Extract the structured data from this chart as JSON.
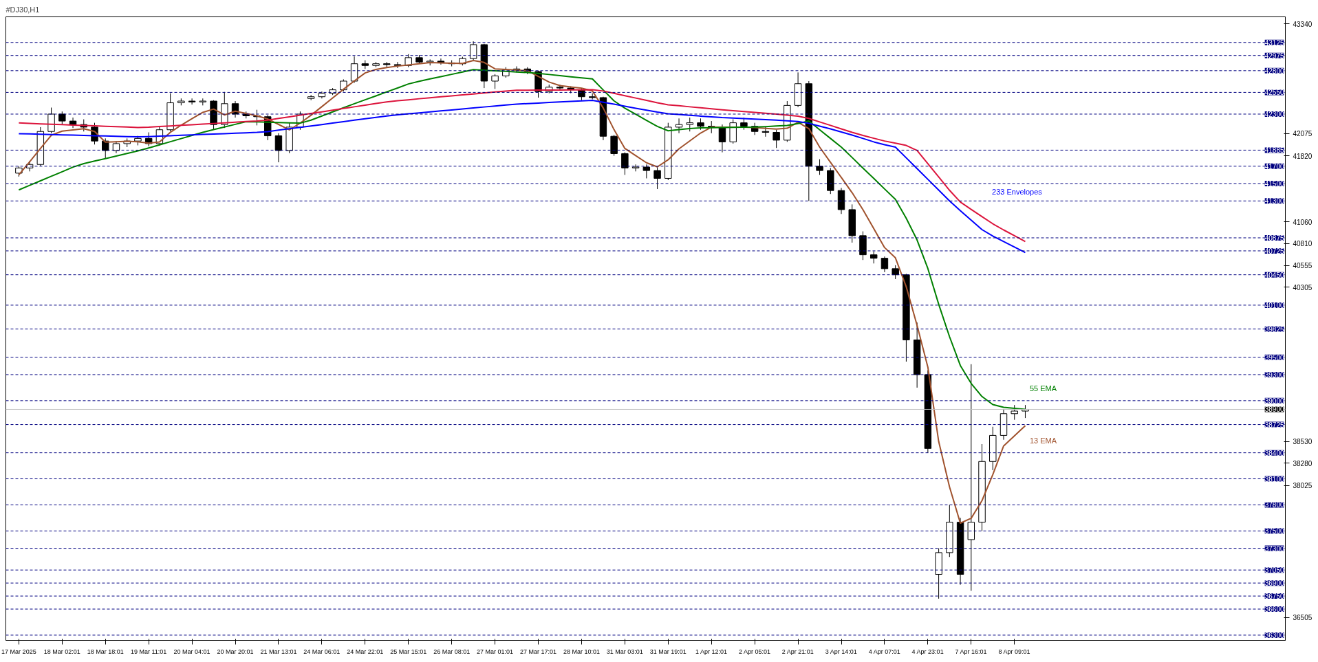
{
  "chart_data": {
    "type": "candlestick",
    "title": "#DJ30,H1",
    "ylim": [
      36240,
      43420
    ],
    "yticks": [
      43340,
      42075,
      41820,
      41060,
      40810,
      40555,
      40305,
      38530,
      38280,
      38025,
      36505
    ],
    "categories": [
      "17 Mar 2025",
      null,
      null,
      null,
      "18 Mar 02:01",
      null,
      null,
      null,
      "18 Mar 18:01",
      null,
      null,
      null,
      "19 Mar 11:01",
      null,
      null,
      null,
      "20 Mar 04:01",
      null,
      null,
      null,
      "20 Mar 20:01",
      null,
      null,
      null,
      "21 Mar 13:01",
      null,
      null,
      null,
      "24 Mar 06:01",
      null,
      null,
      null,
      "24 Mar 22:01",
      null,
      null,
      null,
      "25 Mar 15:01",
      null,
      null,
      null,
      "26 Mar 08:01",
      null,
      null,
      null,
      "27 Mar 01:01",
      null,
      null,
      null,
      "27 Mar 17:01",
      null,
      null,
      null,
      "28 Mar 10:01",
      null,
      null,
      null,
      "31 Mar 03:01",
      null,
      null,
      null,
      "31 Mar 19:01",
      null,
      null,
      null,
      "1 Apr 12:01",
      null,
      null,
      null,
      "2 Apr 05:01",
      null,
      null,
      null,
      "2 Apr 21:01",
      null,
      null,
      null,
      "3 Apr 14:01",
      null,
      null,
      null,
      "4 Apr 07:01",
      null,
      null,
      null,
      "4 Apr 23:01",
      null,
      null,
      null,
      "7 Apr 16:01",
      null,
      null,
      null,
      "8 Apr 09:01",
      null
    ],
    "ohlc": [
      [
        41620,
        41700,
        41580,
        41680
      ],
      [
        41680,
        41760,
        41640,
        41720
      ],
      [
        41720,
        42150,
        41700,
        42100
      ],
      [
        42100,
        42375,
        42080,
        42300
      ],
      [
        42300,
        42330,
        42180,
        42220
      ],
      [
        42220,
        42260,
        42140,
        42180
      ],
      [
        42180,
        42240,
        42100,
        42150
      ],
      [
        42150,
        42200,
        41950,
        41990
      ],
      [
        41990,
        42020,
        41790,
        41880
      ],
      [
        41880,
        41990,
        41850,
        41960
      ],
      [
        41960,
        42020,
        41920,
        41990
      ],
      [
        41990,
        42050,
        41940,
        42020
      ],
      [
        42020,
        42090,
        41930,
        41960
      ],
      [
        41960,
        42150,
        41940,
        42120
      ],
      [
        42120,
        42540,
        42100,
        42430
      ],
      [
        42430,
        42480,
        42400,
        42450
      ],
      [
        42450,
        42480,
        42410,
        42440
      ],
      [
        42440,
        42480,
        42400,
        42450
      ],
      [
        42450,
        42460,
        42120,
        42180
      ],
      [
        42180,
        42555,
        42140,
        42420
      ],
      [
        42420,
        42450,
        42260,
        42300
      ],
      [
        42300,
        42330,
        42250,
        42280
      ],
      [
        42280,
        42350,
        42170,
        42270
      ],
      [
        42270,
        42290,
        42000,
        42050
      ],
      [
        42050,
        42080,
        41745,
        41880
      ],
      [
        41880,
        42200,
        41850,
        42150
      ],
      [
        42150,
        42330,
        42120,
        42300
      ],
      [
        42480,
        42520,
        42460,
        42500
      ],
      [
        42500,
        42560,
        42480,
        42540
      ],
      [
        42540,
        42600,
        42520,
        42580
      ],
      [
        42580,
        42700,
        42560,
        42680
      ],
      [
        42680,
        42965,
        42660,
        42880
      ],
      [
        42880,
        42920,
        42820,
        42860
      ],
      [
        42860,
        42900,
        42840,
        42880
      ],
      [
        42880,
        42900,
        42840,
        42870
      ],
      [
        42870,
        42900,
        42830,
        42860
      ],
      [
        42860,
        42990,
        42840,
        42950
      ],
      [
        42950,
        42980,
        42880,
        42900
      ],
      [
        42900,
        42930,
        42860,
        42910
      ],
      [
        42910,
        42940,
        42870,
        42890
      ],
      [
        42890,
        42920,
        42850,
        42880
      ],
      [
        42880,
        42960,
        42860,
        42940
      ],
      [
        42940,
        43138,
        42920,
        43100
      ],
      [
        43100,
        43110,
        42600,
        42680
      ],
      [
        42680,
        42760,
        42590,
        42740
      ],
      [
        42740,
        42840,
        42720,
        42810
      ],
      [
        42810,
        42850,
        42780,
        42820
      ],
      [
        42820,
        42840,
        42760,
        42790
      ],
      [
        42790,
        42800,
        42490,
        42560
      ],
      [
        42560,
        42640,
        42540,
        42610
      ],
      [
        42610,
        42640,
        42570,
        42600
      ],
      [
        42600,
        42620,
        42540,
        42580
      ],
      [
        42580,
        42600,
        42460,
        42500
      ],
      [
        42500,
        42540,
        42470,
        42490
      ],
      [
        42490,
        42500,
        42000,
        42045
      ],
      [
        42045,
        42060,
        41820,
        41845
      ],
      [
        41845,
        41860,
        41600,
        41680
      ],
      [
        41680,
        41720,
        41640,
        41690
      ],
      [
        41690,
        41720,
        41560,
        41650
      ],
      [
        41650,
        41700,
        41437,
        41560
      ],
      [
        41560,
        42200,
        41540,
        42150
      ],
      [
        42150,
        42250,
        42080,
        42180
      ],
      [
        42180,
        42260,
        42100,
        42200
      ],
      [
        42200,
        42250,
        42120,
        42160
      ],
      [
        42160,
        42220,
        42080,
        42150
      ],
      [
        42150,
        42180,
        41860,
        41980
      ],
      [
        41980,
        42240,
        41960,
        42200
      ],
      [
        42200,
        42260,
        42120,
        42160
      ],
      [
        42160,
        42200,
        42060,
        42100
      ],
      [
        42100,
        42150,
        42040,
        42090
      ],
      [
        42090,
        42120,
        41910,
        42000
      ],
      [
        42000,
        42450,
        41980,
        42400
      ],
      [
        42400,
        42780,
        42380,
        42650
      ],
      [
        42650,
        42680,
        41300,
        41700
      ],
      [
        41700,
        41780,
        41600,
        41650
      ],
      [
        41650,
        41680,
        41380,
        41420
      ],
      [
        41420,
        41450,
        41150,
        41200
      ],
      [
        41200,
        41260,
        40820,
        40900
      ],
      [
        40900,
        40950,
        40620,
        40680
      ],
      [
        40680,
        40720,
        40580,
        40640
      ],
      [
        40640,
        40660,
        40480,
        40520
      ],
      [
        40520,
        40560,
        40400,
        40450
      ],
      [
        40450,
        40460,
        39450,
        39700
      ],
      [
        39700,
        39900,
        39150,
        39300
      ],
      [
        39300,
        39350,
        38400,
        38450
      ],
      [
        37000,
        37300,
        36720,
        37250
      ],
      [
        37250,
        37800,
        37200,
        37600
      ],
      [
        37600,
        37650,
        36880,
        37000
      ],
      [
        37400,
        39420,
        36810,
        37600
      ],
      [
        37600,
        38500,
        37500,
        38300
      ],
      [
        38300,
        38700,
        38200,
        38600
      ],
      [
        38600,
        38900,
        38550,
        38850
      ],
      [
        38850,
        38950,
        38780,
        38880
      ],
      [
        38880,
        38950,
        38800,
        38900
      ]
    ],
    "series": [
      {
        "type": "line",
        "color": "#a0522d",
        "values": [
          41600,
          41750,
          41905,
          42056,
          42104,
          42118,
          42131,
          42100,
          41977,
          41982,
          41987,
          41982,
          41965,
          41980,
          42090,
          42173,
          42247,
          42320,
          42358,
          42290,
          42333,
          42307,
          42280,
          42244,
          42181,
          42118,
          42197,
          42287,
          42386,
          42486,
          42586,
          42682,
          42774,
          42814,
          42837,
          42853,
          42866,
          42880,
          42893,
          42889,
          42885,
          42883,
          42918,
          42895,
          42821,
          42814,
          42807,
          42800,
          42734,
          42669,
          42628,
          42613,
          42598,
          42567,
          42370,
          42121,
          41905,
          41822,
          41740,
          41692,
          41774,
          41900,
          41991,
          42082,
          42150,
          42150,
          42150,
          42150,
          42145,
          42136,
          42127,
          42137,
          42206,
          42133,
          41920,
          41745,
          41570,
          41395,
          41199,
          40981,
          40763,
          40645,
          40312,
          39868,
          39385,
          38529,
          38007,
          37590,
          37646,
          37849,
          38148,
          38479,
          38595,
          38711
        ]
      },
      {
        "type": "line",
        "color": "#008000",
        "values": [
          41427,
          41479,
          41532,
          41584,
          41636,
          41689,
          41730,
          41759,
          41788,
          41817,
          41846,
          41876,
          41910,
          41946,
          41982,
          42018,
          42054,
          42090,
          42121,
          42152,
          42182,
          42213,
          42210,
          42206,
          42203,
          42199,
          42196,
          42231,
          42278,
          42326,
          42373,
          42420,
          42465,
          42510,
          42556,
          42601,
          42647,
          42678,
          42705,
          42731,
          42758,
          42785,
          42812,
          42805,
          42799,
          42792,
          42785,
          42778,
          42769,
          42756,
          42743,
          42730,
          42718,
          42705,
          42578,
          42452,
          42368,
          42298,
          42228,
          42158,
          42108,
          42121,
          42134,
          42141,
          42143,
          42145,
          42147,
          42149,
          42151,
          42156,
          42163,
          42169,
          42191,
          42220,
          42120,
          42020,
          41920,
          41800,
          41679,
          41559,
          41438,
          41318,
          41101,
          40851,
          40521,
          40110,
          39737,
          39405,
          39198,
          39048,
          38955,
          38923,
          38911,
          38900
        ]
      },
      {
        "type": "line",
        "color": "#dc143c",
        "values": [
          42198,
          42193,
          42188,
          42184,
          42179,
          42174,
          42170,
          42165,
          42160,
          42156,
          42151,
          42146,
          42150,
          42157,
          42164,
          42171,
          42178,
          42185,
          42192,
          42199,
          42207,
          42214,
          42221,
          42231,
          42250,
          42269,
          42288,
          42307,
          42326,
          42346,
          42365,
          42384,
          42403,
          42422,
          42441,
          42454,
          42465,
          42477,
          42488,
          42499,
          42510,
          42521,
          42532,
          42543,
          42555,
          42566,
          42574,
          42575,
          42576,
          42577,
          42577,
          42578,
          42579,
          42580,
          42566,
          42539,
          42512,
          42485,
          42458,
          42430,
          42407,
          42396,
          42384,
          42373,
          42361,
          42350,
          42340,
          42330,
          42320,
          42310,
          42300,
          42288,
          42276,
          42250,
          42210,
          42170,
          42130,
          42090,
          42054,
          42022,
          41990,
          41965,
          41939,
          41882,
          41729,
          41576,
          41423,
          41287,
          41203,
          41120,
          41037,
          40966,
          40899,
          40833
        ]
      },
      {
        "type": "line",
        "color": "#0000ff",
        "values": [
          42075,
          42072,
          42068,
          42065,
          42061,
          42058,
          42055,
          42051,
          42048,
          42044,
          42041,
          42038,
          42041,
          42046,
          42051,
          42056,
          42061,
          42066,
          42071,
          42075,
          42080,
          42085,
          42090,
          42098,
          42115,
          42131,
          42148,
          42164,
          42180,
          42197,
          42213,
          42230,
          42246,
          42262,
          42279,
          42291,
          42303,
          42314,
          42325,
          42337,
          42348,
          42359,
          42371,
          42382,
          42393,
          42405,
          42415,
          42421,
          42427,
          42434,
          42440,
          42446,
          42453,
          42459,
          42436,
          42414,
          42391,
          42368,
          42346,
          42323,
          42304,
          42295,
          42286,
          42277,
          42269,
          42260,
          42254,
          42248,
          42242,
          42236,
          42230,
          42222,
          42214,
          42194,
          42162,
          42130,
          42094,
          42058,
          42020,
          41980,
          41947,
          41920,
          41796,
          41672,
          41549,
          41425,
          41301,
          41188,
          41079,
          40970,
          40896,
          40833,
          40769,
          40706
        ]
      }
    ],
    "ref_lines": [
      {
        "axis": "y",
        "value": 43125,
        "label": "43125",
        "color": "#000080",
        "line_style": "dashed"
      },
      {
        "axis": "y",
        "value": 42975,
        "label": "42975",
        "color": "#000080",
        "line_style": "dashed"
      },
      {
        "axis": "y",
        "value": 42800,
        "label": "42800",
        "color": "#000080",
        "line_style": "dashed"
      },
      {
        "axis": "y",
        "value": 42550,
        "label": "42550",
        "color": "#000080",
        "line_style": "dashed"
      },
      {
        "axis": "y",
        "value": 42300,
        "label": "42300",
        "color": "#000080",
        "line_style": "dashed"
      },
      {
        "axis": "y",
        "value": 41885,
        "label": "41885",
        "color": "#000080",
        "line_style": "dashed"
      },
      {
        "axis": "y",
        "value": 41700,
        "label": "41700",
        "color": "#000080",
        "line_style": "dashed"
      },
      {
        "axis": "y",
        "value": 41500,
        "label": "41500",
        "color": "#000080",
        "line_style": "dashed"
      },
      {
        "axis": "y",
        "value": 41300,
        "label": "41300",
        "color": "#000080",
        "line_style": "dashed"
      },
      {
        "axis": "y",
        "value": 40875,
        "label": "40875",
        "color": "#000080",
        "line_style": "dashed"
      },
      {
        "axis": "y",
        "value": 40725,
        "label": "40725",
        "color": "#000080",
        "line_style": "dashed"
      },
      {
        "axis": "y",
        "value": 40450,
        "label": "40450",
        "color": "#000080",
        "line_style": "dashed"
      },
      {
        "axis": "y",
        "value": 40100,
        "label": "40100",
        "color": "#000080",
        "line_style": "dashed"
      },
      {
        "axis": "y",
        "value": 39825,
        "label": "39825",
        "color": "#000080",
        "line_style": "dashed"
      },
      {
        "axis": "y",
        "value": 39500,
        "label": "39500",
        "color": "#000080",
        "line_style": "dashed"
      },
      {
        "axis": "y",
        "value": 39300,
        "label": "39300",
        "color": "#000080",
        "line_style": "dashed"
      },
      {
        "axis": "y",
        "value": 39000,
        "label": "39000",
        "color": "#000080",
        "line_style": "dashed"
      },
      {
        "axis": "y",
        "value": 38900,
        "label": "38900",
        "color": "#c0c0c0",
        "line_style": "solid"
      },
      {
        "axis": "y",
        "value": 38725,
        "label": "38725",
        "color": "#000080",
        "line_style": "dashed"
      },
      {
        "axis": "y",
        "value": 38400,
        "label": "38400",
        "color": "#000080",
        "line_style": "dashed"
      },
      {
        "axis": "y",
        "value": 38100,
        "label": "38100",
        "color": "#000080",
        "line_style": "dashed"
      },
      {
        "axis": "y",
        "value": 37800,
        "label": "37800",
        "color": "#000080",
        "line_style": "dashed"
      },
      {
        "axis": "y",
        "value": 37500,
        "label": "37500",
        "color": "#000080",
        "line_style": "dashed"
      },
      {
        "axis": "y",
        "value": 37300,
        "label": "37300",
        "color": "#000080",
        "line_style": "dashed"
      },
      {
        "axis": "y",
        "value": 37050,
        "label": "37050",
        "color": "#000080",
        "line_style": "dashed"
      },
      {
        "axis": "y",
        "value": 36900,
        "label": "36900",
        "color": "#000080",
        "line_style": "dashed"
      },
      {
        "axis": "y",
        "value": 36750,
        "label": "36750",
        "color": "#000080",
        "line_style": "dashed"
      },
      {
        "axis": "y",
        "value": 36600,
        "label": "36600",
        "color": "#000080",
        "line_style": "dashed"
      },
      {
        "axis": "y",
        "value": 36300,
        "label": "36300",
        "color": "#000080",
        "line_style": "dashed"
      }
    ],
    "annotations": [
      "233 Envelopes",
      "55 EMA",
      "13 EMA"
    ]
  }
}
